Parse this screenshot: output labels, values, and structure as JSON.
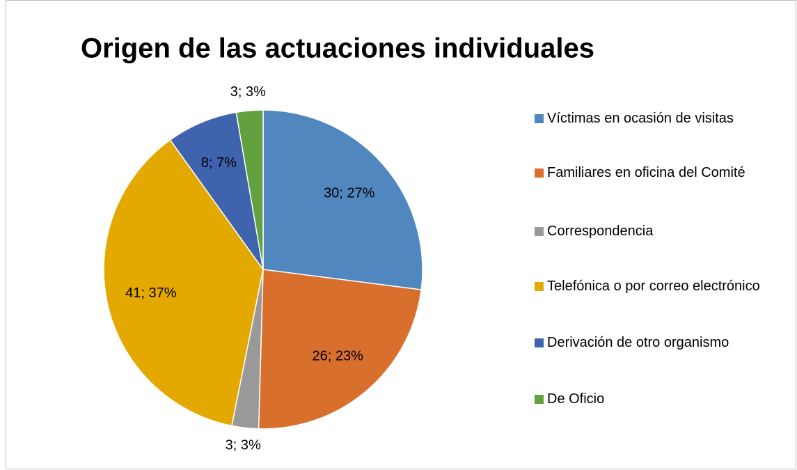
{
  "chart_data": {
    "type": "pie",
    "title": "Origen de las actuaciones individuales",
    "categories": [
      "Víctimas en ocasión de visitas",
      "Familiares en oficina del Comité",
      "Correspondencia",
      "Telefónica o por correo electrónico",
      "Derivación de otro organismo",
      "De Oficio"
    ],
    "values": [
      30,
      26,
      3,
      41,
      8,
      3
    ],
    "value_labels": [
      "30; 27%",
      "26; 23%",
      "3; 3%",
      "41; 37%",
      "8; 7%",
      "3; 3%"
    ],
    "colors": [
      "#4f87be",
      "#d86f2c",
      "#999999",
      "#e3a900",
      "#3f63ac",
      "#63a03f"
    ],
    "legend": "right"
  }
}
